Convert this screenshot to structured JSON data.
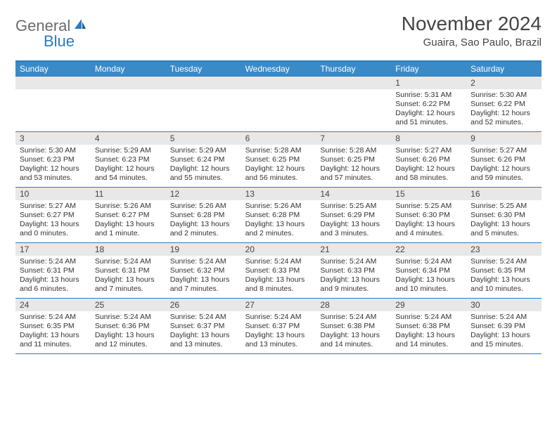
{
  "logo": {
    "general": "General",
    "blue": "Blue"
  },
  "title": "November 2024",
  "location": "Guaira, Sao Paulo, Brazil",
  "colors": {
    "header_bar": "#3a8ac8",
    "border": "#2b7bbf",
    "daynum_bg": "#e8e8e8",
    "text": "#333333",
    "logo_gray": "#6b6b6b",
    "logo_blue": "#2b7bbf"
  },
  "weekdays": [
    "Sunday",
    "Monday",
    "Tuesday",
    "Wednesday",
    "Thursday",
    "Friday",
    "Saturday"
  ],
  "weeks": [
    [
      {
        "n": "",
        "lines": []
      },
      {
        "n": "",
        "lines": []
      },
      {
        "n": "",
        "lines": []
      },
      {
        "n": "",
        "lines": []
      },
      {
        "n": "",
        "lines": []
      },
      {
        "n": "1",
        "lines": [
          "Sunrise: 5:31 AM",
          "Sunset: 6:22 PM",
          "Daylight: 12 hours",
          "and 51 minutes."
        ]
      },
      {
        "n": "2",
        "lines": [
          "Sunrise: 5:30 AM",
          "Sunset: 6:22 PM",
          "Daylight: 12 hours",
          "and 52 minutes."
        ]
      }
    ],
    [
      {
        "n": "3",
        "lines": [
          "Sunrise: 5:30 AM",
          "Sunset: 6:23 PM",
          "Daylight: 12 hours",
          "and 53 minutes."
        ]
      },
      {
        "n": "4",
        "lines": [
          "Sunrise: 5:29 AM",
          "Sunset: 6:23 PM",
          "Daylight: 12 hours",
          "and 54 minutes."
        ]
      },
      {
        "n": "5",
        "lines": [
          "Sunrise: 5:29 AM",
          "Sunset: 6:24 PM",
          "Daylight: 12 hours",
          "and 55 minutes."
        ]
      },
      {
        "n": "6",
        "lines": [
          "Sunrise: 5:28 AM",
          "Sunset: 6:25 PM",
          "Daylight: 12 hours",
          "and 56 minutes."
        ]
      },
      {
        "n": "7",
        "lines": [
          "Sunrise: 5:28 AM",
          "Sunset: 6:25 PM",
          "Daylight: 12 hours",
          "and 57 minutes."
        ]
      },
      {
        "n": "8",
        "lines": [
          "Sunrise: 5:27 AM",
          "Sunset: 6:26 PM",
          "Daylight: 12 hours",
          "and 58 minutes."
        ]
      },
      {
        "n": "9",
        "lines": [
          "Sunrise: 5:27 AM",
          "Sunset: 6:26 PM",
          "Daylight: 12 hours",
          "and 59 minutes."
        ]
      }
    ],
    [
      {
        "n": "10",
        "lines": [
          "Sunrise: 5:27 AM",
          "Sunset: 6:27 PM",
          "Daylight: 13 hours",
          "and 0 minutes."
        ]
      },
      {
        "n": "11",
        "lines": [
          "Sunrise: 5:26 AM",
          "Sunset: 6:27 PM",
          "Daylight: 13 hours",
          "and 1 minute."
        ]
      },
      {
        "n": "12",
        "lines": [
          "Sunrise: 5:26 AM",
          "Sunset: 6:28 PM",
          "Daylight: 13 hours",
          "and 2 minutes."
        ]
      },
      {
        "n": "13",
        "lines": [
          "Sunrise: 5:26 AM",
          "Sunset: 6:28 PM",
          "Daylight: 13 hours",
          "and 2 minutes."
        ]
      },
      {
        "n": "14",
        "lines": [
          "Sunrise: 5:25 AM",
          "Sunset: 6:29 PM",
          "Daylight: 13 hours",
          "and 3 minutes."
        ]
      },
      {
        "n": "15",
        "lines": [
          "Sunrise: 5:25 AM",
          "Sunset: 6:30 PM",
          "Daylight: 13 hours",
          "and 4 minutes."
        ]
      },
      {
        "n": "16",
        "lines": [
          "Sunrise: 5:25 AM",
          "Sunset: 6:30 PM",
          "Daylight: 13 hours",
          "and 5 minutes."
        ]
      }
    ],
    [
      {
        "n": "17",
        "lines": [
          "Sunrise: 5:24 AM",
          "Sunset: 6:31 PM",
          "Daylight: 13 hours",
          "and 6 minutes."
        ]
      },
      {
        "n": "18",
        "lines": [
          "Sunrise: 5:24 AM",
          "Sunset: 6:31 PM",
          "Daylight: 13 hours",
          "and 7 minutes."
        ]
      },
      {
        "n": "19",
        "lines": [
          "Sunrise: 5:24 AM",
          "Sunset: 6:32 PM",
          "Daylight: 13 hours",
          "and 7 minutes."
        ]
      },
      {
        "n": "20",
        "lines": [
          "Sunrise: 5:24 AM",
          "Sunset: 6:33 PM",
          "Daylight: 13 hours",
          "and 8 minutes."
        ]
      },
      {
        "n": "21",
        "lines": [
          "Sunrise: 5:24 AM",
          "Sunset: 6:33 PM",
          "Daylight: 13 hours",
          "and 9 minutes."
        ]
      },
      {
        "n": "22",
        "lines": [
          "Sunrise: 5:24 AM",
          "Sunset: 6:34 PM",
          "Daylight: 13 hours",
          "and 10 minutes."
        ]
      },
      {
        "n": "23",
        "lines": [
          "Sunrise: 5:24 AM",
          "Sunset: 6:35 PM",
          "Daylight: 13 hours",
          "and 10 minutes."
        ]
      }
    ],
    [
      {
        "n": "24",
        "lines": [
          "Sunrise: 5:24 AM",
          "Sunset: 6:35 PM",
          "Daylight: 13 hours",
          "and 11 minutes."
        ]
      },
      {
        "n": "25",
        "lines": [
          "Sunrise: 5:24 AM",
          "Sunset: 6:36 PM",
          "Daylight: 13 hours",
          "and 12 minutes."
        ]
      },
      {
        "n": "26",
        "lines": [
          "Sunrise: 5:24 AM",
          "Sunset: 6:37 PM",
          "Daylight: 13 hours",
          "and 13 minutes."
        ]
      },
      {
        "n": "27",
        "lines": [
          "Sunrise: 5:24 AM",
          "Sunset: 6:37 PM",
          "Daylight: 13 hours",
          "and 13 minutes."
        ]
      },
      {
        "n": "28",
        "lines": [
          "Sunrise: 5:24 AM",
          "Sunset: 6:38 PM",
          "Daylight: 13 hours",
          "and 14 minutes."
        ]
      },
      {
        "n": "29",
        "lines": [
          "Sunrise: 5:24 AM",
          "Sunset: 6:38 PM",
          "Daylight: 13 hours",
          "and 14 minutes."
        ]
      },
      {
        "n": "30",
        "lines": [
          "Sunrise: 5:24 AM",
          "Sunset: 6:39 PM",
          "Daylight: 13 hours",
          "and 15 minutes."
        ]
      }
    ]
  ]
}
